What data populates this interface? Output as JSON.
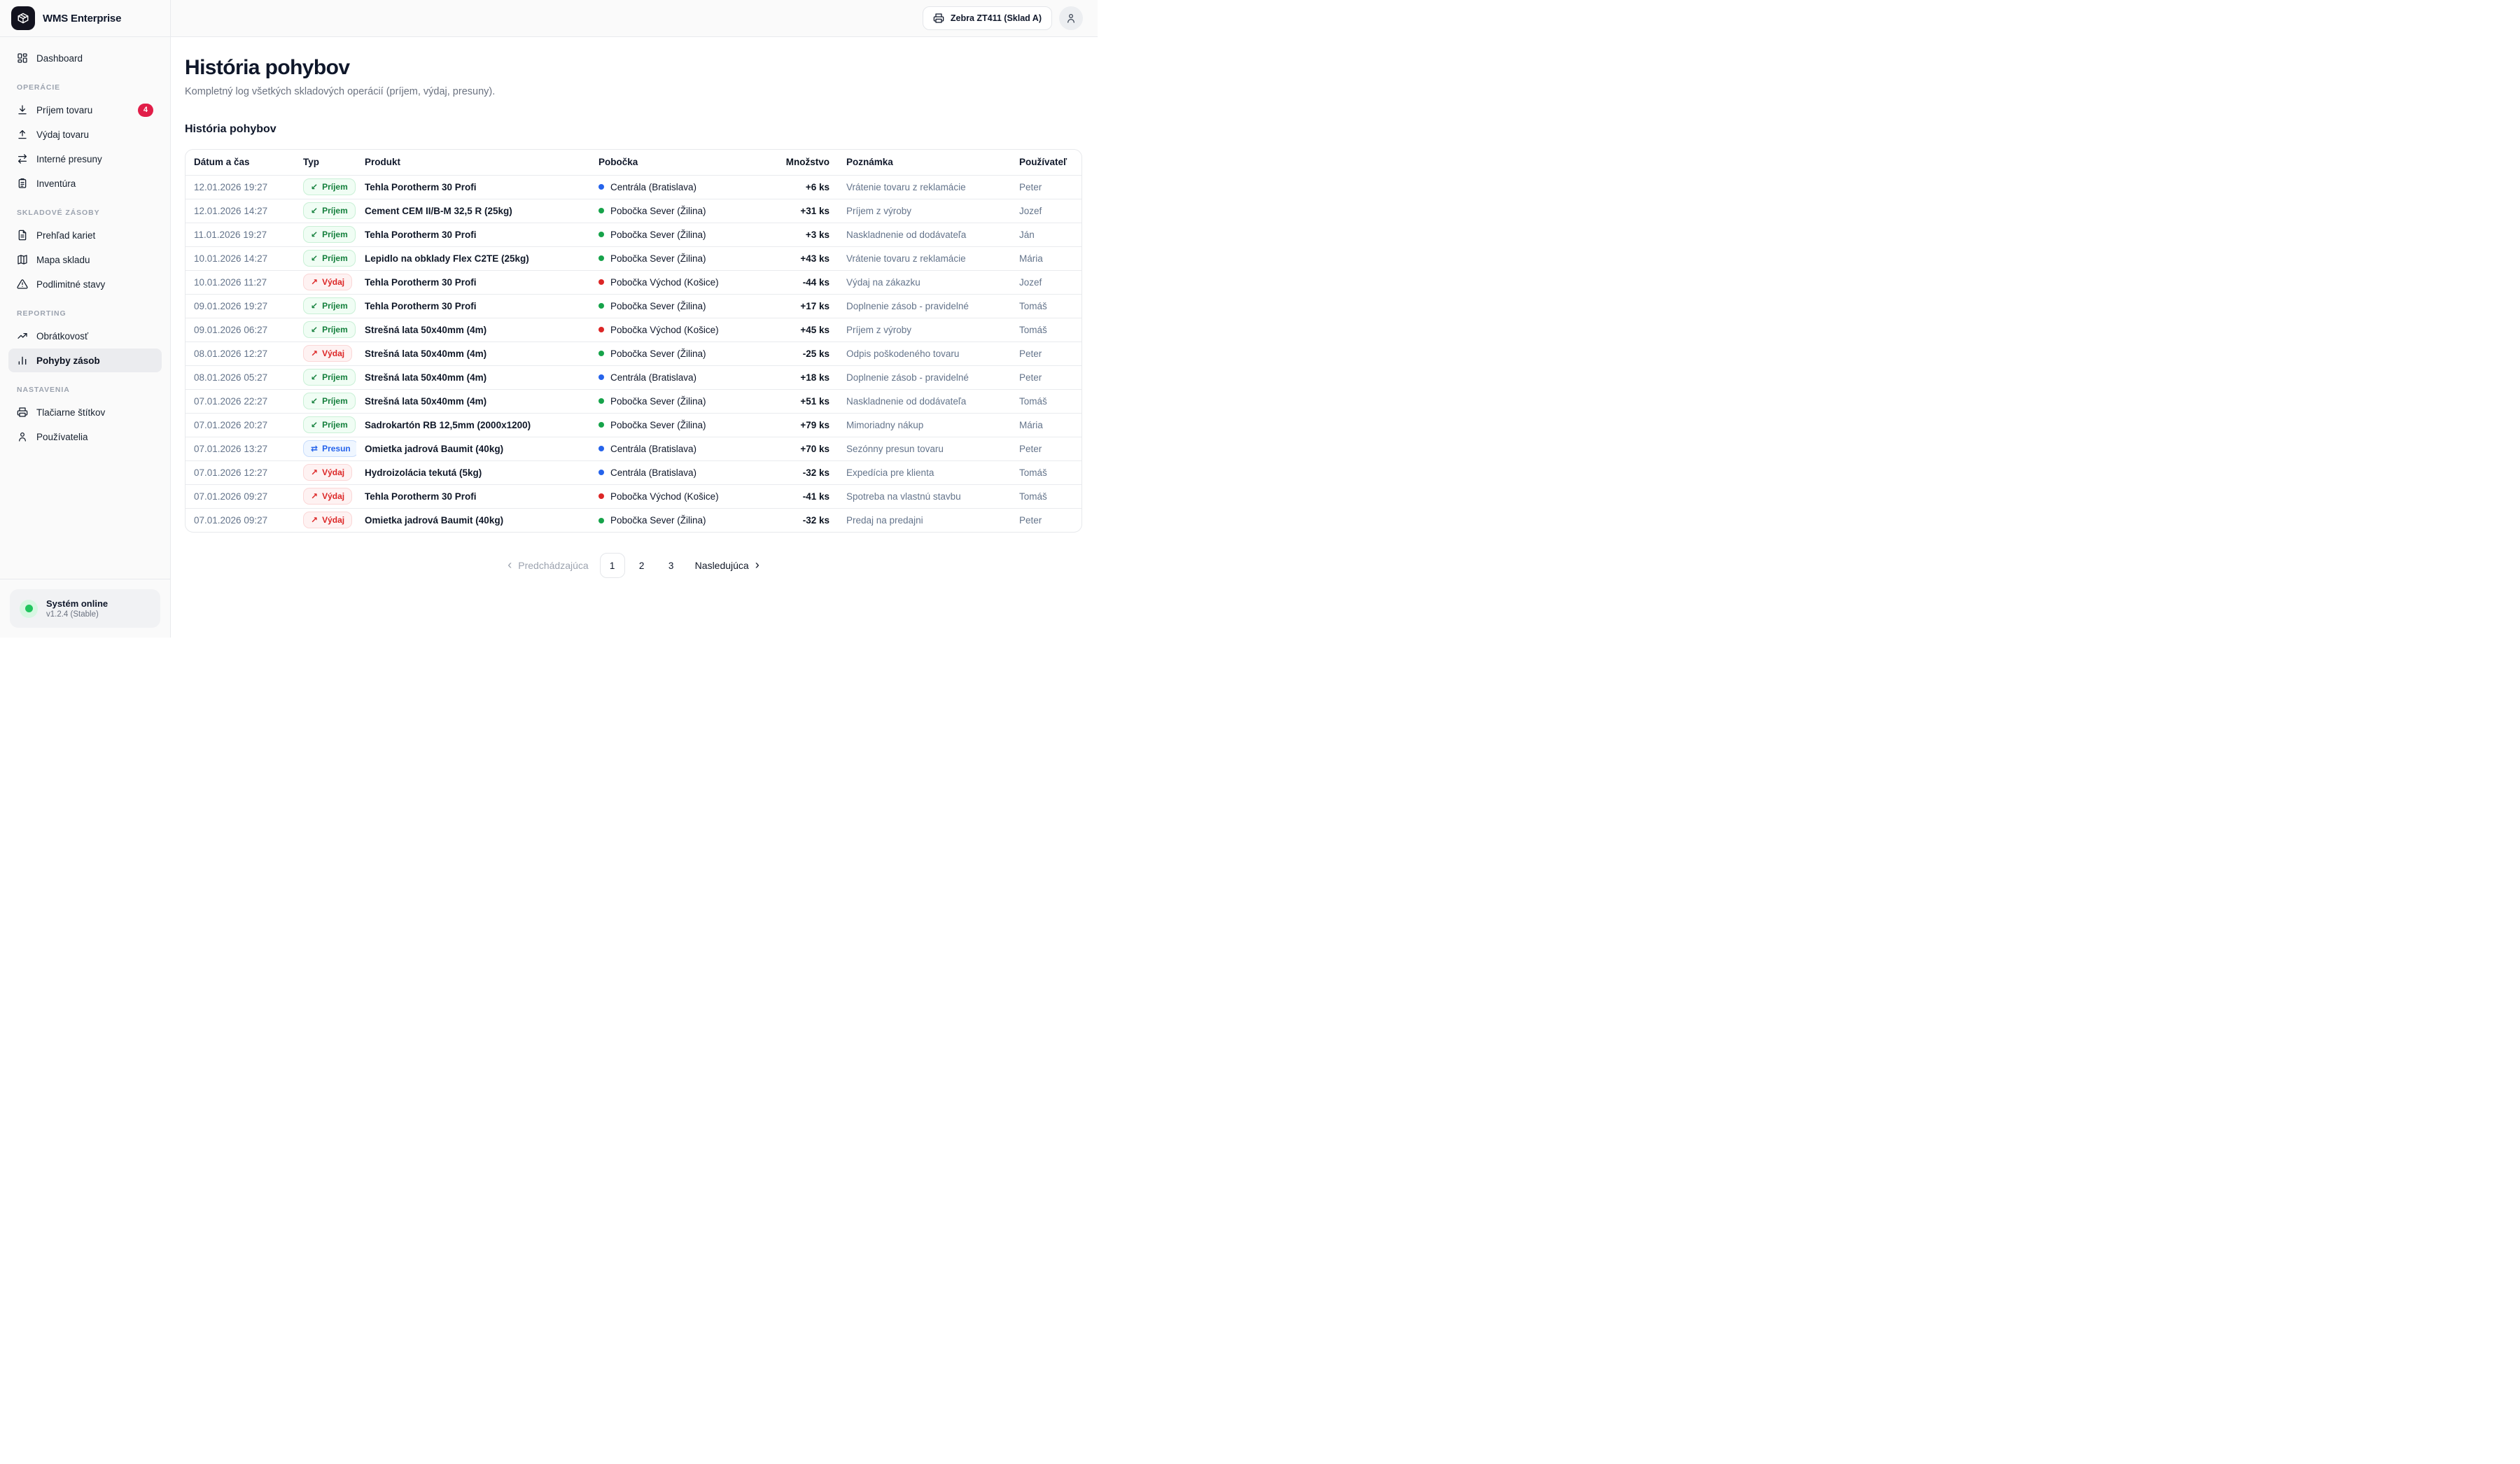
{
  "app": {
    "title": "WMS Enterprise"
  },
  "topbar": {
    "printer_button_label": "Zebra ZT411 (Sklad A)"
  },
  "sidebar": {
    "dashboard_label": "Dashboard",
    "sections": [
      {
        "title": "OPERÁCIE",
        "items": [
          {
            "label": "Príjem tovaru",
            "badge": "4"
          },
          {
            "label": "Výdaj tovaru"
          },
          {
            "label": "Interné presuny"
          },
          {
            "label": "Inventúra"
          }
        ]
      },
      {
        "title": "SKLADOVÉ ZÁSOBY",
        "items": [
          {
            "label": "Prehľad kariet"
          },
          {
            "label": "Mapa skladu"
          },
          {
            "label": "Podlimitné stavy"
          }
        ]
      },
      {
        "title": "REPORTING",
        "items": [
          {
            "label": "Obrátkovosť"
          },
          {
            "label": "Pohyby zásob",
            "active": true
          }
        ]
      },
      {
        "title": "NASTAVENIA",
        "items": [
          {
            "label": "Tlačiarne štítkov"
          },
          {
            "label": "Používatelia"
          }
        ]
      }
    ],
    "footer": {
      "status": "Systém online",
      "version": "v1.2.4 (Stable)"
    }
  },
  "page": {
    "title": "História pohybov",
    "subtitle": "Kompletný log všetkých skladových operácií (príjem, výdaj, presuny).",
    "card_title": "História pohybov"
  },
  "table": {
    "columns": {
      "datetime": "Dátum a čas",
      "type": "Typ",
      "product": "Produkt",
      "branch": "Pobočka",
      "qty": "Množstvo",
      "note": "Poznámka",
      "user": "Používateľ"
    },
    "badges": {
      "in": {
        "label": "Príjem",
        "arrow": "↙"
      },
      "out": {
        "label": "Výdaj",
        "arrow": "↗"
      },
      "transfer": {
        "label": "Presun",
        "arrow": "⇄"
      }
    },
    "rows": [
      {
        "datetime": "12.01.2026 19:27",
        "type": "in",
        "product": "Tehla Porotherm 30 Profi",
        "branch": "Centrála (Bratislava)",
        "branch_color": "blue",
        "qty": "+6 ks",
        "note": "Vrátenie tovaru z reklamácie",
        "user": "Peter"
      },
      {
        "datetime": "12.01.2026 14:27",
        "type": "in",
        "product": "Cement CEM II/B-M 32,5 R (25kg)",
        "branch": "Pobočka Sever (Žilina)",
        "branch_color": "green",
        "qty": "+31 ks",
        "note": "Príjem z výroby",
        "user": "Jozef"
      },
      {
        "datetime": "11.01.2026 19:27",
        "type": "in",
        "product": "Tehla Porotherm 30 Profi",
        "branch": "Pobočka Sever (Žilina)",
        "branch_color": "green",
        "qty": "+3 ks",
        "note": "Naskladnenie od dodávateľa",
        "user": "Ján"
      },
      {
        "datetime": "10.01.2026 14:27",
        "type": "in",
        "product": "Lepidlo na obklady Flex C2TE (25kg)",
        "branch": "Pobočka Sever (Žilina)",
        "branch_color": "green",
        "qty": "+43 ks",
        "note": "Vrátenie tovaru z reklamácie",
        "user": "Mária"
      },
      {
        "datetime": "10.01.2026 11:27",
        "type": "out",
        "product": "Tehla Porotherm 30 Profi",
        "branch": "Pobočka Východ (Košice)",
        "branch_color": "red",
        "qty": "-44 ks",
        "note": "Výdaj na zákazku",
        "user": "Jozef"
      },
      {
        "datetime": "09.01.2026 19:27",
        "type": "in",
        "product": "Tehla Porotherm 30 Profi",
        "branch": "Pobočka Sever (Žilina)",
        "branch_color": "green",
        "qty": "+17 ks",
        "note": "Doplnenie zásob - pravidelné",
        "user": "Tomáš"
      },
      {
        "datetime": "09.01.2026 06:27",
        "type": "in",
        "product": "Strešná lata 50x40mm (4m)",
        "branch": "Pobočka Východ (Košice)",
        "branch_color": "red",
        "qty": "+45 ks",
        "note": "Príjem z výroby",
        "user": "Tomáš"
      },
      {
        "datetime": "08.01.2026 12:27",
        "type": "out",
        "product": "Strešná lata 50x40mm (4m)",
        "branch": "Pobočka Sever (Žilina)",
        "branch_color": "green",
        "qty": "-25 ks",
        "note": "Odpis poškodeného tovaru",
        "user": "Peter"
      },
      {
        "datetime": "08.01.2026 05:27",
        "type": "in",
        "product": "Strešná lata 50x40mm (4m)",
        "branch": "Centrála (Bratislava)",
        "branch_color": "blue",
        "qty": "+18 ks",
        "note": "Doplnenie zásob - pravidelné",
        "user": "Peter"
      },
      {
        "datetime": "07.01.2026 22:27",
        "type": "in",
        "product": "Strešná lata 50x40mm (4m)",
        "branch": "Pobočka Sever (Žilina)",
        "branch_color": "green",
        "qty": "+51 ks",
        "note": "Naskladnenie od dodávateľa",
        "user": "Tomáš"
      },
      {
        "datetime": "07.01.2026 20:27",
        "type": "in",
        "product": "Sadrokartón RB 12,5mm (2000x1200)",
        "branch": "Pobočka Sever (Žilina)",
        "branch_color": "green",
        "qty": "+79 ks",
        "note": "Mimoriadny nákup",
        "user": "Mária"
      },
      {
        "datetime": "07.01.2026 13:27",
        "type": "transfer",
        "product": "Omietka jadrová Baumit (40kg)",
        "branch": "Centrála (Bratislava)",
        "branch_color": "blue",
        "qty": "+70 ks",
        "note": "Sezónny presun tovaru",
        "user": "Peter"
      },
      {
        "datetime": "07.01.2026 12:27",
        "type": "out",
        "product": "Hydroizolácia tekutá (5kg)",
        "branch": "Centrála (Bratislava)",
        "branch_color": "blue",
        "qty": "-32 ks",
        "note": "Expedícia pre klienta",
        "user": "Tomáš"
      },
      {
        "datetime": "07.01.2026 09:27",
        "type": "out",
        "product": "Tehla Porotherm 30 Profi",
        "branch": "Pobočka Východ (Košice)",
        "branch_color": "red",
        "qty": "-41 ks",
        "note": "Spotreba na vlastnú stavbu",
        "user": "Tomáš"
      },
      {
        "datetime": "07.01.2026 09:27",
        "type": "out",
        "product": "Omietka jadrová Baumit (40kg)",
        "branch": "Pobočka Sever (Žilina)",
        "branch_color": "green",
        "qty": "-32 ks",
        "note": "Predaj na predajni",
        "user": "Peter"
      }
    ]
  },
  "pagination": {
    "prev_label": "Predchádzajúca",
    "prev_chevron": "‹",
    "pages": [
      "1",
      "2",
      "3"
    ],
    "active_page": "1",
    "next_label": "Nasledujúca",
    "next_chevron": "›"
  },
  "colors": {
    "accent_count_badge": "#e11d48",
    "type_in": "#15803d",
    "type_out": "#dc2626",
    "type_transfer": "#2563eb",
    "dot_blue": "#2563eb",
    "dot_green": "#16a34a",
    "dot_red": "#dc2626",
    "status_online": "#22c55e"
  }
}
